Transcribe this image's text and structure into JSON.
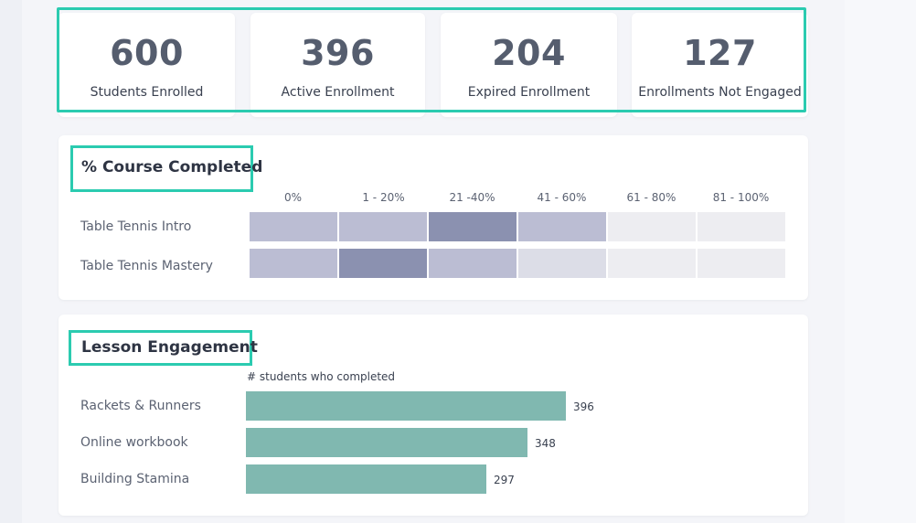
{
  "kpis": [
    {
      "value": "600",
      "label": "Students Enrolled"
    },
    {
      "value": "396",
      "label": "Active Enrollment"
    },
    {
      "value": "204",
      "label": "Expired Enrollment"
    },
    {
      "value": "127",
      "label": "Enrollments Not Engaged"
    }
  ],
  "highlight_color": "#2bcbb0",
  "course_completed": {
    "title": "% Course Completed",
    "columns": [
      "0%",
      "1 - 20%",
      "21 -40%",
      "41 - 60%",
      "61 - 80%",
      "81 - 100%"
    ],
    "rows": [
      {
        "label": "Table Tennis Intro",
        "levels": [
          "mid",
          "mid",
          "dark",
          "mid",
          "light",
          "light"
        ]
      },
      {
        "label": "Table Tennis Mastery",
        "levels": [
          "mid",
          "dark",
          "mid",
          "pale",
          "light",
          "light"
        ]
      }
    ],
    "colors": {
      "dark": "#8b91b0",
      "mid": "#bbbdd3",
      "pale": "#dcdde7",
      "light": "#ededf1"
    }
  },
  "lesson_engagement": {
    "title": "Lesson Engagement",
    "caption": "# students who completed",
    "bar_color": "#80b8b0",
    "chart_data": {
      "type": "bar",
      "orientation": "horizontal",
      "categories": [
        "Rackets & Runners",
        "Online workbook",
        "Building Stamina"
      ],
      "values": [
        396,
        348,
        297
      ],
      "values_text": [
        "396",
        "348",
        "297"
      ],
      "xlabel": "# students who completed",
      "xlim": [
        0,
        396
      ]
    }
  }
}
